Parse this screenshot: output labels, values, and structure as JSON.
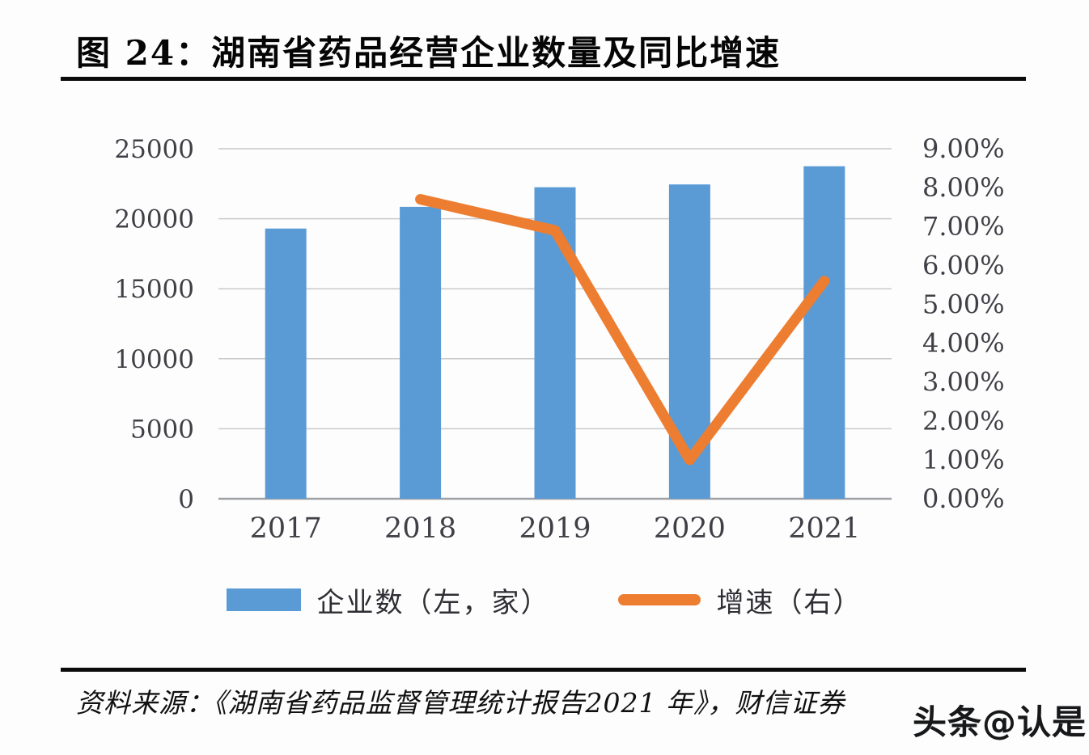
{
  "figure": {
    "title": "图 24：湖南省药品经营企业数量及同比增速",
    "source": "资料来源：《湖南省药品监督管理统计报告2021 年》，财信证券",
    "watermark": "头条@认是"
  },
  "chart_data": {
    "type": "bar",
    "subtype": "combo-bar-line-dual-axis",
    "title": "湖南省药品经营企业数量及同比增速",
    "categories": [
      "2017",
      "2018",
      "2019",
      "2020",
      "2021"
    ],
    "series": [
      {
        "name": "企业数（左，家）",
        "type": "bar",
        "axis": "left",
        "color": "#5B9BD5",
        "values": [
          19300,
          20850,
          22250,
          22450,
          23750
        ]
      },
      {
        "name": "增速（右）",
        "type": "line",
        "axis": "right",
        "color": "#ED7D31",
        "unit": "%",
        "values": [
          null,
          7.7,
          6.9,
          1.0,
          5.6
        ]
      }
    ],
    "left_axis": {
      "min": 0,
      "max": 25000,
      "step": 5000,
      "tick_labels": [
        "0",
        "5000",
        "10000",
        "15000",
        "20000",
        "25000"
      ]
    },
    "right_axis": {
      "min": 0,
      "max": 9,
      "step": 1,
      "tick_labels": [
        "0.00%",
        "1.00%",
        "2.00%",
        "3.00%",
        "4.00%",
        "5.00%",
        "6.00%",
        "7.00%",
        "8.00%",
        "9.00%"
      ]
    },
    "grid": true,
    "legend_position": "bottom",
    "colors": {
      "bar": "#5B9BD5",
      "line": "#ED7D31",
      "gridline": "#C8CACC",
      "axis_line": "#9EA0A5",
      "tick_text": "#3F3F46"
    }
  }
}
